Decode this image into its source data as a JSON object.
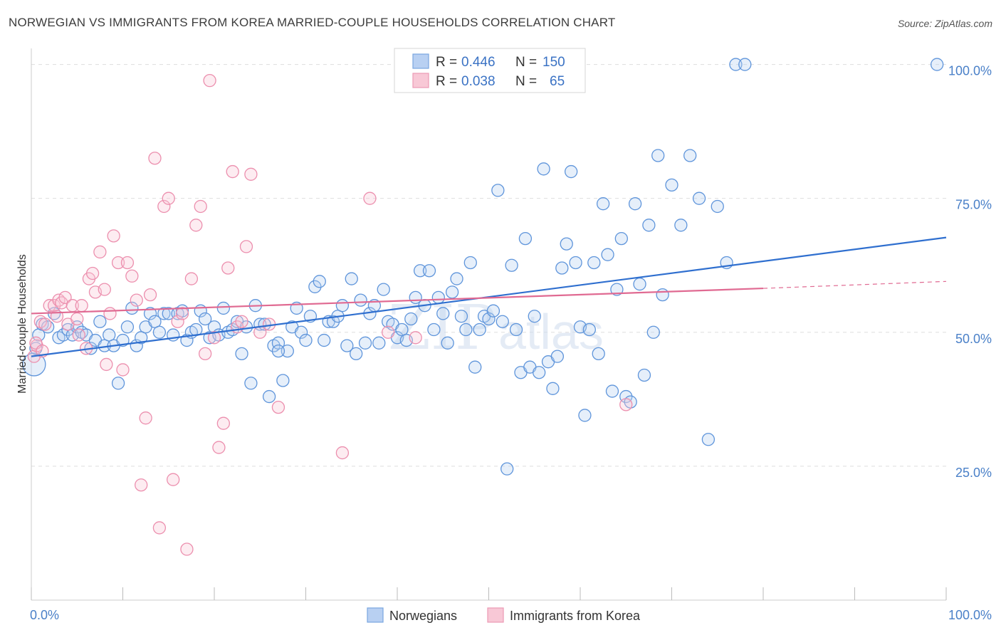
{
  "title": "NORWEGIAN VS IMMIGRANTS FROM KOREA MARRIED-COUPLE HOUSEHOLDS CORRELATION CHART",
  "source": "Source: ZipAtlas.com",
  "watermark": {
    "zip": "ZIP",
    "atlas": "atlas"
  },
  "colors": {
    "blue": "#6b9fe0",
    "blue_line": "#2f6fcf",
    "pink": "#f0a0b8",
    "pink_line": "#e06a92",
    "grid": "#dddddd",
    "tick_text": "#4a80c8"
  },
  "chart_data": {
    "type": "scatter",
    "title": "NORWEGIAN VS IMMIGRANTS FROM KOREA MARRIED-COUPLE HOUSEHOLDS CORRELATION CHART",
    "xlabel": "",
    "ylabel": "Married-couple Households",
    "xlim": [
      0,
      100
    ],
    "ylim": [
      0,
      103
    ],
    "x_tick_labels": [
      {
        "value": 0,
        "label": "0.0%"
      },
      {
        "value": 100,
        "label": "100.0%"
      }
    ],
    "y_tick_labels": [
      {
        "value": 25,
        "label": "25.0%"
      },
      {
        "value": 50,
        "label": "50.0%"
      },
      {
        "value": 75,
        "label": "75.0%"
      },
      {
        "value": 100,
        "label": "100.0%"
      }
    ],
    "grid": "horizontal dashed",
    "legend_top": [
      {
        "r_label": "R =",
        "r": "0.446",
        "n_label": "N =",
        "n": "150"
      },
      {
        "r_label": "R =",
        "r": "0.038",
        "n_label": "N =",
        "n": "65"
      }
    ],
    "series": [
      {
        "name": "Norwegians",
        "color": "#6b9fe0",
        "trend": {
          "x": [
            0,
            100
          ],
          "y": [
            45.5,
            67.7
          ]
        },
        "points": [
          [
            0.3,
            44
          ],
          [
            0.5,
            47
          ],
          [
            0.8,
            49.5
          ],
          [
            1.2,
            51.5
          ],
          [
            1.8,
            51
          ],
          [
            2.5,
            53.5
          ],
          [
            3,
            49
          ],
          [
            3.5,
            49.5
          ],
          [
            4,
            50.5
          ],
          [
            4.5,
            49.5
          ],
          [
            5,
            51
          ],
          [
            5.5,
            50
          ],
          [
            6,
            49.5
          ],
          [
            6.5,
            47
          ],
          [
            7,
            48.5
          ],
          [
            7.5,
            52
          ],
          [
            8,
            47.5
          ],
          [
            8.5,
            49.5
          ],
          [
            9,
            47.5
          ],
          [
            9.5,
            40.5
          ],
          [
            10,
            48.5
          ],
          [
            10.5,
            51
          ],
          [
            11,
            54.5
          ],
          [
            11.5,
            47.5
          ],
          [
            12,
            49
          ],
          [
            12.5,
            51
          ],
          [
            13,
            53.5
          ],
          [
            13.5,
            52
          ],
          [
            14,
            50
          ],
          [
            14.5,
            53.5
          ],
          [
            15,
            53.5
          ],
          [
            15.5,
            49.5
          ],
          [
            16,
            53.5
          ],
          [
            16.5,
            54
          ],
          [
            17,
            48.5
          ],
          [
            17.5,
            50
          ],
          [
            18,
            50.5
          ],
          [
            18.5,
            54
          ],
          [
            19,
            52.5
          ],
          [
            19.5,
            49
          ],
          [
            20,
            51
          ],
          [
            20.5,
            49.5
          ],
          [
            21,
            54.5
          ],
          [
            21.5,
            50
          ],
          [
            22,
            50.5
          ],
          [
            22.5,
            52
          ],
          [
            23,
            46
          ],
          [
            23.5,
            51
          ],
          [
            24,
            40.5
          ],
          [
            24.5,
            55
          ],
          [
            25,
            51.5
          ],
          [
            25.5,
            51.5
          ],
          [
            26,
            38
          ],
          [
            26.5,
            47.5
          ],
          [
            27,
            48
          ],
          [
            27.5,
            41
          ],
          [
            28,
            46.5
          ],
          [
            28.5,
            51
          ],
          [
            29,
            54.5
          ],
          [
            29.5,
            50
          ],
          [
            30,
            48.5
          ],
          [
            30.5,
            53
          ],
          [
            31,
            58.5
          ],
          [
            31.5,
            59.5
          ],
          [
            32,
            48.5
          ],
          [
            32.5,
            52
          ],
          [
            33,
            52
          ],
          [
            33.5,
            53
          ],
          [
            34,
            55
          ],
          [
            34.5,
            47.5
          ],
          [
            35,
            60
          ],
          [
            35.5,
            46
          ],
          [
            36,
            56
          ],
          [
            36.5,
            48
          ],
          [
            37,
            53.5
          ],
          [
            37.5,
            55
          ],
          [
            38,
            48
          ],
          [
            38.5,
            58
          ],
          [
            39,
            52
          ],
          [
            39.5,
            51.5
          ],
          [
            40,
            49
          ],
          [
            40.5,
            50.5
          ],
          [
            41,
            48.5
          ],
          [
            41.5,
            52.5
          ],
          [
            42,
            56.5
          ],
          [
            42.5,
            61.5
          ],
          [
            43,
            55
          ],
          [
            43.5,
            61.5
          ],
          [
            44,
            50.5
          ],
          [
            44.5,
            56.5
          ],
          [
            45,
            53.5
          ],
          [
            45.5,
            48
          ],
          [
            46,
            57.5
          ],
          [
            46.5,
            60
          ],
          [
            47,
            53
          ],
          [
            47.5,
            50.5
          ],
          [
            48,
            63
          ],
          [
            48.5,
            43.5
          ],
          [
            49,
            50.5
          ],
          [
            49.5,
            53
          ],
          [
            50,
            52.5
          ],
          [
            50.5,
            54
          ],
          [
            51,
            76.5
          ],
          [
            51.5,
            52
          ],
          [
            52,
            24.5
          ],
          [
            52.5,
            62.5
          ],
          [
            53,
            50.5
          ],
          [
            53.5,
            42.5
          ],
          [
            54,
            67.5
          ],
          [
            54.5,
            43.5
          ],
          [
            55,
            53
          ],
          [
            55.5,
            42.5
          ],
          [
            56,
            80.5
          ],
          [
            56.5,
            44.5
          ],
          [
            57,
            39.5
          ],
          [
            57.5,
            45.5
          ],
          [
            58,
            62
          ],
          [
            58.5,
            66.5
          ],
          [
            59,
            80
          ],
          [
            59.5,
            63
          ],
          [
            60,
            51
          ],
          [
            60.5,
            34.5
          ],
          [
            61,
            50.5
          ],
          [
            61.5,
            63
          ],
          [
            62,
            46
          ],
          [
            62.5,
            74
          ],
          [
            63,
            64.5
          ],
          [
            63.5,
            39
          ],
          [
            64,
            58
          ],
          [
            64.5,
            67.5
          ],
          [
            65,
            38
          ],
          [
            65.5,
            37
          ],
          [
            66,
            74
          ],
          [
            66.5,
            59
          ],
          [
            67,
            42
          ],
          [
            67.5,
            70
          ],
          [
            68,
            50
          ],
          [
            68.5,
            83
          ],
          [
            69,
            57
          ],
          [
            70,
            77.5
          ],
          [
            71,
            70
          ],
          [
            72,
            83
          ],
          [
            73,
            75
          ],
          [
            74,
            30
          ],
          [
            75,
            73.5
          ],
          [
            76,
            63
          ],
          [
            77,
            100
          ],
          [
            78,
            100
          ],
          [
            99,
            100
          ],
          [
            27,
            46.5
          ]
        ]
      },
      {
        "name": "Immigrants from Korea",
        "color": "#f0a0b8",
        "trend": {
          "x": [
            0,
            80
          ],
          "y": [
            53.5,
            58.2
          ]
        },
        "trend_dashed": {
          "x": [
            80,
            100
          ],
          "y": [
            58.2,
            59.5
          ]
        },
        "points": [
          [
            0.3,
            45.5
          ],
          [
            0.6,
            47.5
          ],
          [
            1,
            52
          ],
          [
            1.5,
            51.5
          ],
          [
            2,
            55
          ],
          [
            2.5,
            55
          ],
          [
            3,
            56
          ],
          [
            3.3,
            55.5
          ],
          [
            3.7,
            56.5
          ],
          [
            4,
            51.5
          ],
          [
            4.5,
            55
          ],
          [
            5,
            52.5
          ],
          [
            5.5,
            55
          ],
          [
            6,
            47
          ],
          [
            6.3,
            60
          ],
          [
            6.7,
            61
          ],
          [
            7,
            57.5
          ],
          [
            7.5,
            65
          ],
          [
            8,
            58
          ],
          [
            8.2,
            44
          ],
          [
            8.6,
            53.5
          ],
          [
            9,
            68
          ],
          [
            9.5,
            63
          ],
          [
            10,
            43
          ],
          [
            10.5,
            63
          ],
          [
            11,
            60.5
          ],
          [
            11.5,
            56
          ],
          [
            12,
            21.5
          ],
          [
            12.5,
            34
          ],
          [
            13,
            57
          ],
          [
            13.5,
            82.5
          ],
          [
            14,
            13.5
          ],
          [
            14.5,
            73.5
          ],
          [
            15,
            75
          ],
          [
            15.5,
            22.5
          ],
          [
            16,
            52
          ],
          [
            16.5,
            53.5
          ],
          [
            17,
            9.5
          ],
          [
            17.5,
            60
          ],
          [
            18,
            70
          ],
          [
            18.5,
            73.5
          ],
          [
            19,
            46
          ],
          [
            19.5,
            97
          ],
          [
            20,
            49
          ],
          [
            20.5,
            28.5
          ],
          [
            21,
            33
          ],
          [
            21.5,
            62
          ],
          [
            22,
            80
          ],
          [
            22.5,
            51
          ],
          [
            23,
            52
          ],
          [
            23.5,
            66
          ],
          [
            24,
            79.5
          ],
          [
            25,
            50
          ],
          [
            26,
            51.5
          ],
          [
            27,
            36
          ],
          [
            34,
            27.5
          ],
          [
            37,
            75
          ],
          [
            39,
            50
          ],
          [
            41,
            100
          ],
          [
            42,
            49
          ],
          [
            65,
            36.5
          ],
          [
            0.5,
            48
          ],
          [
            1.2,
            46.5
          ],
          [
            2.8,
            53
          ],
          [
            5.2,
            49.5
          ]
        ]
      }
    ]
  },
  "legend_bottom": [
    {
      "label": "Norwegians",
      "color": "#6b9fe0"
    },
    {
      "label": "Immigrants from Korea",
      "color": "#f0a0b8"
    }
  ]
}
